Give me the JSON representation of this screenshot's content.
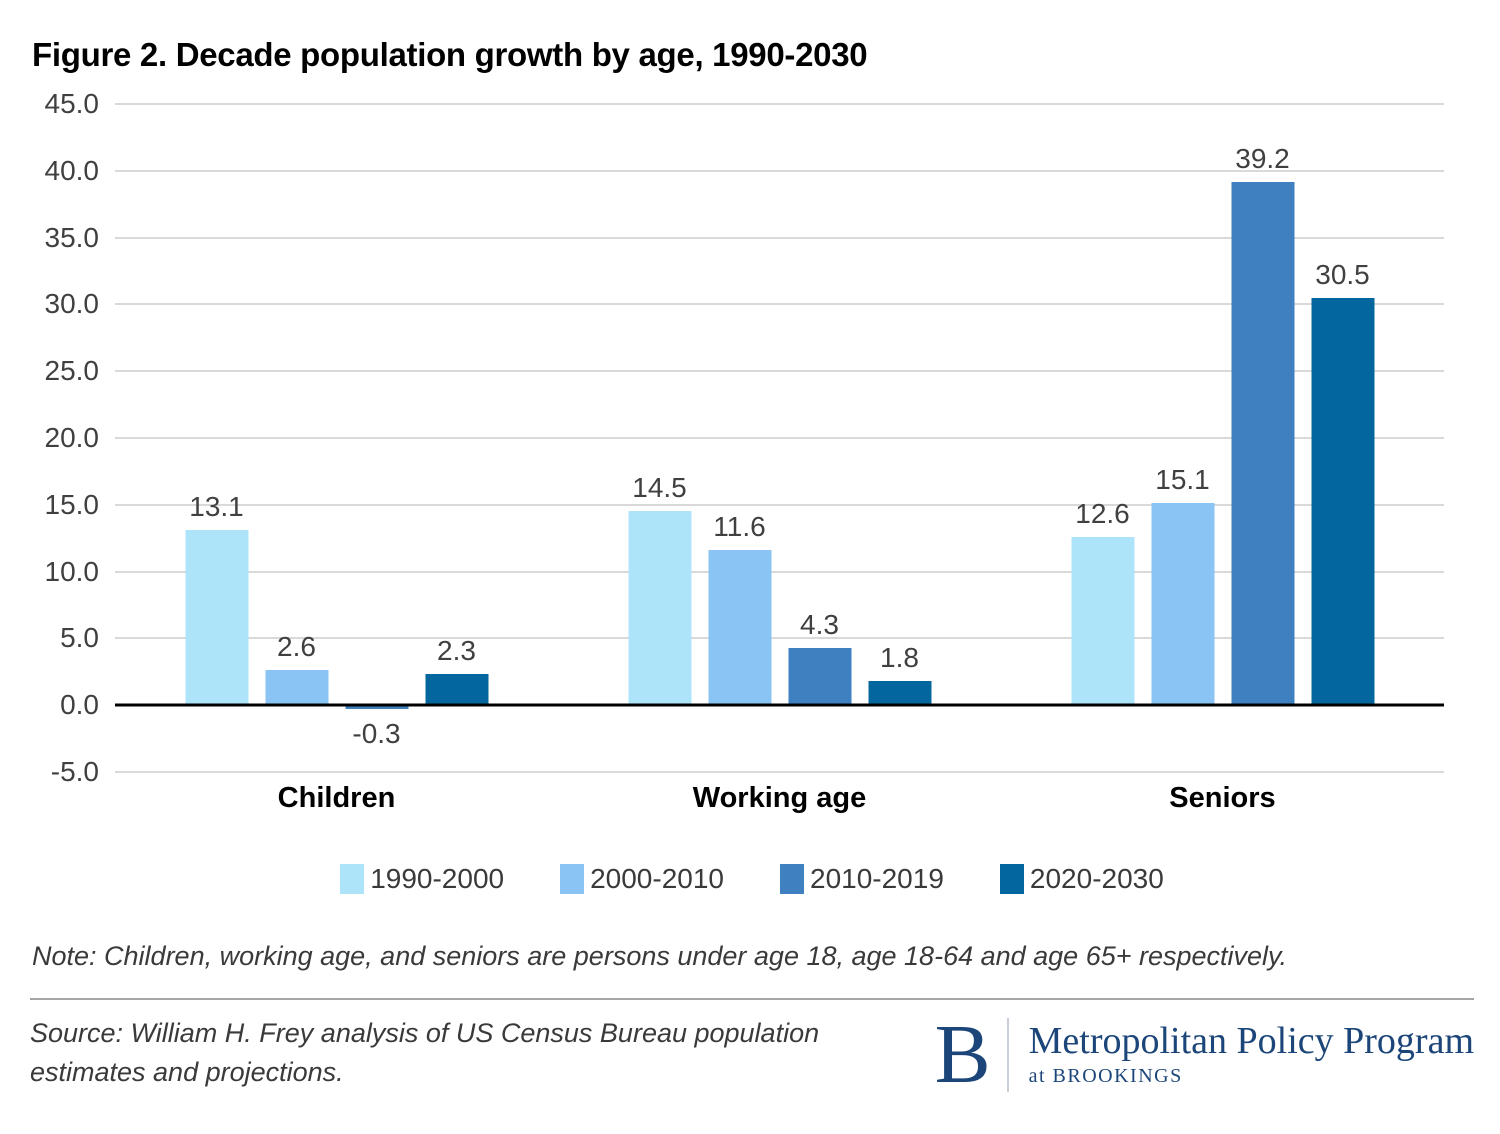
{
  "title": "Figure 2. Decade population growth by age, 1990-2030",
  "chart_data": {
    "type": "bar",
    "title": "Figure 2. Decade population growth by age, 1990-2030",
    "categories": [
      "Children",
      "Working age",
      "Seniors"
    ],
    "series": [
      {
        "name": "1990-2000",
        "color": "#ade4fa",
        "values": [
          13.1,
          14.5,
          12.6
        ]
      },
      {
        "name": "2000-2010",
        "color": "#89c4f4",
        "values": [
          2.6,
          11.6,
          15.1
        ]
      },
      {
        "name": "2010-2019",
        "color": "#3f80c0",
        "values": [
          -0.3,
          4.3,
          39.2
        ]
      },
      {
        "name": "2020-2030",
        "color": "#03669e",
        "values": [
          2.3,
          1.8,
          30.5
        ]
      }
    ],
    "ylim": [
      -5,
      45
    ],
    "ytick_step": 5,
    "ytick_labels": [
      "45.0",
      "40.0",
      "35.0",
      "30.0",
      "25.0",
      "20.0",
      "15.0",
      "10.0",
      "5.0",
      "0.0",
      "-5.0"
    ],
    "grid": true,
    "value_labels": true,
    "legend_position": "bottom"
  },
  "palette": {
    "gridline": "#d9d9d9",
    "axis_line": "#000000",
    "label_text": "#404040",
    "navy": "#1c4679",
    "divider": "#a6a6a6"
  },
  "note": "Note: Children, working age, and seniors are persons under age 18, age 18-64 and age 65+ respectively.",
  "source": "Source: William H. Frey analysis of US Census Bureau population estimates and projections.",
  "logo": {
    "monogram": "B",
    "program": "Metropolitan Policy Program",
    "sub": "at BROOKINGS"
  }
}
